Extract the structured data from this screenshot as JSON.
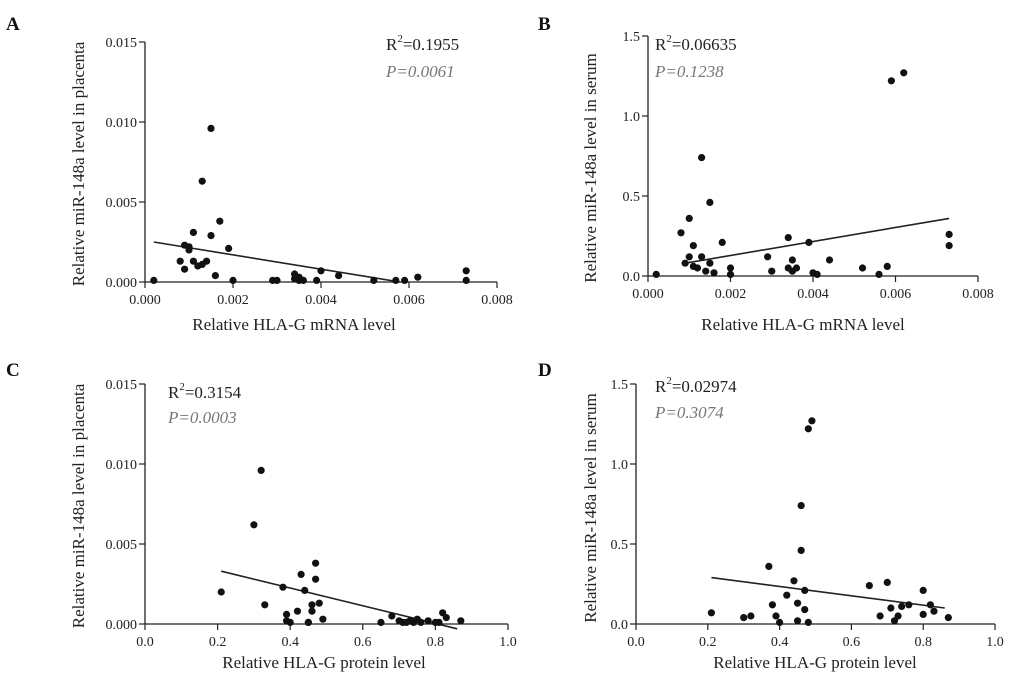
{
  "chart_data": [
    {
      "panel": "A",
      "type": "scatter",
      "xlabel": "Relative HLA-G mRNA level",
      "ylabel": "Relative miR-148a level in placenta",
      "xlim": [
        0.0,
        0.008
      ],
      "ylim": [
        0.0,
        0.015
      ],
      "xticks": [
        0.0,
        0.002,
        0.004,
        0.006,
        0.008
      ],
      "yticks": [
        0.0,
        0.005,
        0.01,
        0.015
      ],
      "xtick_labels": [
        "0.000",
        "0.002",
        "0.004",
        "0.006",
        "0.008"
      ],
      "ytick_labels": [
        "0.000",
        "0.005",
        "0.010",
        "0.015"
      ],
      "r2_prefix": "R",
      "r2_sup": "2",
      "r2_value": "=0.1955",
      "p_text": "P=0.0061",
      "fit_line": [
        [
          0.0002,
          0.0025
        ],
        [
          0.0058,
          0.0
        ]
      ],
      "x": [
        0.0002,
        0.0008,
        0.0009,
        0.0009,
        0.001,
        0.001,
        0.0011,
        0.0011,
        0.0012,
        0.0013,
        0.0013,
        0.0014,
        0.0015,
        0.0015,
        0.0016,
        0.0017,
        0.0019,
        0.002,
        0.0029,
        0.003,
        0.0034,
        0.0034,
        0.0035,
        0.0035,
        0.0036,
        0.0039,
        0.004,
        0.0044,
        0.0052,
        0.0057,
        0.0059,
        0.0062,
        0.0073,
        0.0073
      ],
      "y": [
        0.0001,
        0.0013,
        0.0008,
        0.0023,
        0.0022,
        0.002,
        0.0013,
        0.0031,
        0.001,
        0.0063,
        0.0011,
        0.0013,
        0.0029,
        0.0096,
        0.0004,
        0.0038,
        0.0021,
        0.0001,
        0.0001,
        0.0001,
        0.0002,
        0.0005,
        0.0003,
        0.0001,
        0.0001,
        0.0001,
        0.0007,
        0.0004,
        0.0001,
        0.0001,
        0.0001,
        0.0003,
        0.0001,
        0.0007
      ]
    },
    {
      "panel": "B",
      "type": "scatter",
      "xlabel": "Relative HLA-G mRNA level",
      "ylabel": "Relative miR-148a level in serum",
      "xlim": [
        0.0,
        0.008
      ],
      "ylim": [
        0.0,
        1.5
      ],
      "xticks": [
        0.0,
        0.002,
        0.004,
        0.006,
        0.008
      ],
      "yticks": [
        0.0,
        0.5,
        1.0,
        1.5
      ],
      "xtick_labels": [
        "0.000",
        "0.002",
        "0.004",
        "0.006",
        "0.008"
      ],
      "ytick_labels": [
        "0.0",
        "0.5",
        "1.0",
        "1.5"
      ],
      "r2_prefix": "R",
      "r2_sup": "2",
      "r2_value": "=0.06635",
      "p_text": "P=0.1238",
      "fit_line": [
        [
          0.0009,
          0.08
        ],
        [
          0.0073,
          0.36
        ]
      ],
      "x": [
        0.0002,
        0.0008,
        0.0009,
        0.001,
        0.001,
        0.0011,
        0.0011,
        0.0012,
        0.0013,
        0.0013,
        0.0014,
        0.0015,
        0.0015,
        0.0016,
        0.0018,
        0.002,
        0.002,
        0.0029,
        0.003,
        0.0034,
        0.0034,
        0.0035,
        0.0035,
        0.0036,
        0.0039,
        0.004,
        0.0041,
        0.0044,
        0.0052,
        0.0056,
        0.0058,
        0.0059,
        0.0062,
        0.0073,
        0.0073
      ],
      "y": [
        0.01,
        0.27,
        0.08,
        0.36,
        0.12,
        0.19,
        0.06,
        0.05,
        0.74,
        0.12,
        0.03,
        0.46,
        0.08,
        0.02,
        0.21,
        0.05,
        0.01,
        0.12,
        0.03,
        0.24,
        0.05,
        0.03,
        0.1,
        0.05,
        0.21,
        0.02,
        0.01,
        0.1,
        0.05,
        0.01,
        0.06,
        1.22,
        1.27,
        0.26,
        0.19
      ]
    },
    {
      "panel": "C",
      "type": "scatter",
      "xlabel": "Relative HLA-G protein level",
      "ylabel": "Relative miR-148a level in placenta",
      "xlim": [
        0.0,
        1.0
      ],
      "ylim": [
        0.0,
        0.015
      ],
      "xticks": [
        0.0,
        0.2,
        0.4,
        0.6,
        0.8,
        1.0
      ],
      "yticks": [
        0.0,
        0.005,
        0.01,
        0.015
      ],
      "xtick_labels": [
        "0.0",
        "0.2",
        "0.4",
        "0.6",
        "0.8",
        "1.0"
      ],
      "ytick_labels": [
        "0.000",
        "0.005",
        "0.010",
        "0.015"
      ],
      "r2_prefix": "R",
      "r2_sup": "2",
      "r2_value": "=0.3154",
      "p_text": "P=0.0003",
      "fit_line": [
        [
          0.21,
          0.0033
        ],
        [
          0.86,
          -0.0003
        ]
      ],
      "x": [
        0.21,
        0.3,
        0.32,
        0.33,
        0.38,
        0.39,
        0.39,
        0.4,
        0.42,
        0.43,
        0.44,
        0.45,
        0.45,
        0.46,
        0.46,
        0.47,
        0.47,
        0.48,
        0.49,
        0.65,
        0.68,
        0.7,
        0.71,
        0.72,
        0.73,
        0.74,
        0.75,
        0.76,
        0.78,
        0.8,
        0.81,
        0.82,
        0.83,
        0.87
      ],
      "y": [
        0.002,
        0.0062,
        0.0096,
        0.0012,
        0.0023,
        0.0006,
        0.0002,
        0.0001,
        0.0008,
        0.0031,
        0.0021,
        0.0001,
        0.0001,
        0.0012,
        0.0008,
        0.0028,
        0.0038,
        0.0013,
        0.0003,
        0.0001,
        0.0005,
        0.0002,
        0.0001,
        0.0001,
        0.0002,
        0.0001,
        0.0003,
        0.0001,
        0.0002,
        0.0001,
        0.0001,
        0.0007,
        0.0004,
        0.0002
      ]
    },
    {
      "panel": "D",
      "type": "scatter",
      "xlabel": "Relative HLA-G protein level",
      "ylabel": "Relative miR-148a level in serum",
      "xlim": [
        0.0,
        1.0
      ],
      "ylim": [
        0.0,
        1.5
      ],
      "xticks": [
        0.0,
        0.2,
        0.4,
        0.6,
        0.8,
        1.0
      ],
      "yticks": [
        0.0,
        0.5,
        1.0,
        1.5
      ],
      "xtick_labels": [
        "0.0",
        "0.2",
        "0.4",
        "0.6",
        "0.8",
        "1.0"
      ],
      "ytick_labels": [
        "0.0",
        "0.5",
        "1.0",
        "1.5"
      ],
      "r2_prefix": "R",
      "r2_sup": "2",
      "r2_value": "=0.02974",
      "p_text": "P=0.3074",
      "fit_line": [
        [
          0.21,
          0.29
        ],
        [
          0.86,
          0.1
        ]
      ],
      "x": [
        0.21,
        0.3,
        0.32,
        0.37,
        0.38,
        0.39,
        0.4,
        0.42,
        0.44,
        0.45,
        0.45,
        0.46,
        0.46,
        0.47,
        0.47,
        0.48,
        0.48,
        0.49,
        0.65,
        0.68,
        0.7,
        0.71,
        0.72,
        0.73,
        0.74,
        0.76,
        0.8,
        0.8,
        0.82,
        0.83,
        0.87
      ],
      "y": [
        0.07,
        0.04,
        0.05,
        0.36,
        0.12,
        0.05,
        0.01,
        0.18,
        0.27,
        0.02,
        0.13,
        0.46,
        0.74,
        0.21,
        0.09,
        1.22,
        0.01,
        1.27,
        0.24,
        0.05,
        0.26,
        0.1,
        0.02,
        0.05,
        0.11,
        0.12,
        0.21,
        0.06,
        0.12,
        0.08,
        0.04
      ]
    }
  ]
}
